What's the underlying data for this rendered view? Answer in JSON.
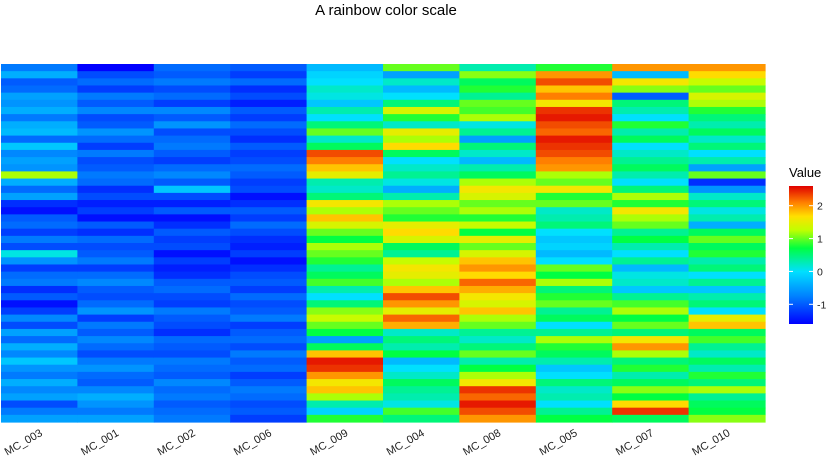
{
  "chart_data": {
    "type": "heatmap",
    "title": "A rainbow color scale",
    "columns": [
      "MC_003",
      "MC_001",
      "MC_002",
      "MC_006",
      "MC_009",
      "MC_004",
      "MC_008",
      "MC_005",
      "MC_007",
      "MC_010"
    ],
    "row_count": 50,
    "value_range": [
      -1.6,
      2.6
    ],
    "legend": {
      "title": "Value",
      "ticks": [
        -1,
        0,
        1,
        2
      ],
      "placement": "right",
      "colormap": "rainbow"
    },
    "column_value_profiles": {
      "MC_003": [
        -0.8,
        -0.4,
        -1.0,
        -0.9,
        -0.5,
        -0.6,
        -0.4,
        -0.8,
        -0.4,
        -0.3,
        -0.9,
        -0.2,
        -0.7,
        -0.5,
        -0.6,
        1.2,
        -0.4,
        -0.9,
        -0.5,
        -1.3,
        -1.5,
        -1.0,
        -0.9,
        -1.2,
        -0.8,
        -1.1,
        0.1,
        -0.6,
        -1.2,
        -0.9,
        -0.8,
        -1.3,
        -1.0,
        -1.5,
        -1.2,
        -0.7,
        -1.1,
        -0.5,
        -0.9,
        -0.4,
        -0.7,
        -0.2,
        -0.6,
        -0.8,
        -0.4,
        -0.7,
        -0.5,
        -1.1,
        -0.8,
        -0.5
      ],
      "MC_001": [
        -1.6,
        -1.1,
        -0.9,
        -1.2,
        -0.8,
        -1.0,
        -0.7,
        -1.1,
        -1.0,
        -0.6,
        -0.9,
        -1.2,
        -0.8,
        -1.1,
        -1.0,
        -0.8,
        -0.9,
        -1.3,
        -1.1,
        -1.4,
        -1.2,
        -1.5,
        -1.0,
        -1.3,
        -0.9,
        -1.1,
        -1.0,
        -0.8,
        -1.2,
        -0.9,
        -0.7,
        -1.0,
        -1.1,
        -0.9,
        -0.6,
        -1.2,
        -0.8,
        -1.0,
        -0.7,
        -0.9,
        -1.1,
        -0.8,
        -0.6,
        -0.9,
        -1.0,
        -0.7,
        -0.4,
        -0.6,
        -0.8,
        -0.5
      ],
      "MC_002": [
        -0.9,
        -1.0,
        -0.8,
        -1.1,
        -0.9,
        -1.2,
        -0.7,
        -1.0,
        -0.6,
        -1.1,
        -0.9,
        -0.8,
        -1.0,
        -1.2,
        -0.9,
        -0.7,
        -1.0,
        -0.2,
        -1.1,
        -1.4,
        -1.0,
        -1.5,
        -1.3,
        -1.0,
        -1.2,
        -1.1,
        -1.5,
        -1.2,
        -1.4,
        -1.3,
        -1.0,
        -0.9,
        -1.1,
        -1.2,
        -0.8,
        -1.0,
        -1.1,
        -1.3,
        -0.9,
        -1.0,
        -1.1,
        -0.8,
        -0.9,
        -1.0,
        -0.7,
        -0.9,
        -0.8,
        -1.0,
        -0.9,
        -0.8
      ],
      "MC_006": [
        -1.0,
        -1.2,
        -0.9,
        -1.3,
        -1.1,
        -1.4,
        -1.0,
        -1.2,
        -0.9,
        -1.1,
        -1.3,
        -1.0,
        -1.2,
        -1.1,
        -0.9,
        -1.0,
        -1.2,
        -1.1,
        -1.5,
        -1.3,
        -1.0,
        -1.2,
        -0.9,
        -1.1,
        -1.3,
        -1.4,
        -1.2,
        -1.5,
        -1.3,
        -1.1,
        -1.0,
        -1.2,
        -0.9,
        -1.1,
        -1.0,
        -0.8,
        -1.2,
        -1.0,
        -0.9,
        -1.1,
        -0.8,
        -1.0,
        -0.9,
        -1.2,
        -1.0,
        -0.8,
        -0.9,
        -1.1,
        -1.0,
        -1.2
      ],
      "MC_009": [
        -0.3,
        -0.1,
        0.0,
        0.2,
        0.1,
        -0.2,
        0.3,
        0.0,
        0.5,
        1.0,
        0.2,
        0.6,
        2.3,
        2.1,
        1.8,
        1.5,
        0.3,
        0.2,
        0.5,
        1.6,
        1.2,
        1.8,
        1.4,
        1.0,
        0.7,
        1.2,
        1.0,
        0.8,
        0.4,
        0.6,
        0.9,
        0.3,
        0.0,
        0.5,
        1.1,
        1.3,
        1.0,
        0.7,
        -0.5,
        0.6,
        1.8,
        2.5,
        2.4,
        2.0,
        1.6,
        1.8,
        1.2,
        0.3,
        -0.1,
        0.8
      ],
      "MC_004": [
        1.0,
        -0.5,
        0.2,
        -0.3,
        0.0,
        0.5,
        1.4,
        0.8,
        0.2,
        1.5,
        1.2,
        1.7,
        0.6,
        0.0,
        0.2,
        0.4,
        0.1,
        -0.4,
        0.3,
        1.2,
        1.0,
        0.8,
        1.5,
        1.7,
        1.4,
        0.6,
        0.4,
        1.3,
        1.6,
        1.5,
        1.2,
        1.8,
        2.3,
        2.0,
        1.5,
        2.2,
        1.9,
        0.2,
        0.5,
        0.3,
        0.7,
        -0.3,
        0.0,
        0.2,
        0.6,
        0.4,
        0.3,
        0.1,
        0.9,
        0.5
      ],
      "MC_008": [
        0.3,
        1.1,
        0.6,
        0.8,
        0.4,
        1.0,
        0.9,
        1.2,
        0.1,
        0.4,
        -0.5,
        0.5,
        0.2,
        -0.3,
        0.3,
        0.6,
        1.2,
        1.6,
        1.4,
        1.0,
        1.2,
        0.8,
        1.3,
        0.7,
        1.5,
        1.0,
        1.4,
        1.8,
        2.0,
        1.7,
        2.2,
        1.9,
        1.6,
        1.4,
        1.8,
        1.2,
        1.0,
        0.4,
        0.2,
        0.5,
        1.0,
        0.3,
        0.7,
        1.2,
        1.6,
        2.4,
        2.2,
        2.5,
        2.3,
        2.0
      ],
      "MC_005": [
        0.8,
        2.0,
        2.3,
        1.8,
        2.1,
        1.6,
        2.4,
        2.5,
        2.3,
        2.2,
        2.5,
        2.4,
        2.3,
        2.1,
        2.0,
        1.2,
        1.0,
        1.6,
        0.8,
        1.0,
        0.2,
        0.3,
        0.5,
        0.0,
        -0.2,
        -0.1,
        -0.3,
        0.0,
        1.0,
        0.7,
        1.2,
        0.5,
        0.8,
        1.0,
        0.4,
        0.6,
        0.0,
        0.4,
        1.2,
        0.8,
        0.6,
        0.3,
        -0.2,
        0.0,
        0.5,
        0.2,
        0.3,
        0.0,
        0.4,
        0.7
      ],
      "MC_007": [
        2.0,
        -0.3,
        1.6,
        1.1,
        -1.0,
        0.5,
        0.3,
        0.0,
        0.8,
        0.3,
        0.6,
        0.0,
        0.2,
        0.4,
        0.6,
        0.3,
        0.0,
        0.5,
        1.2,
        0.8,
        1.6,
        1.2,
        1.0,
        0.4,
        0.7,
        0.3,
        0.0,
        0.4,
        -0.3,
        0.1,
        0.2,
        -0.2,
        0.4,
        0.9,
        1.2,
        0.7,
        1.0,
        0.5,
        1.6,
        2.0,
        1.2,
        0.5,
        0.8,
        0.3,
        0.6,
        1.1,
        0.7,
        1.7,
        2.4,
        0.6
      ],
      "MC_010": [
        2.0,
        1.7,
        1.3,
        1.0,
        1.4,
        1.2,
        0.8,
        0.5,
        0.3,
        0.6,
        0.2,
        0.5,
        0.0,
        0.3,
        -0.5,
        1.0,
        -1.3,
        -0.6,
        0.2,
        0.5,
        0.1,
        0.3,
        -0.4,
        0.6,
        1.0,
        0.6,
        0.8,
        0.3,
        0.5,
        0.0,
        0.4,
        -0.2,
        0.3,
        0.5,
        0.0,
        1.5,
        1.8,
        0.6,
        0.9,
        0.4,
        0.2,
        0.6,
        0.3,
        0.8,
        0.5,
        1.2,
        0.4,
        0.6,
        0.7,
        1.1
      ]
    }
  }
}
